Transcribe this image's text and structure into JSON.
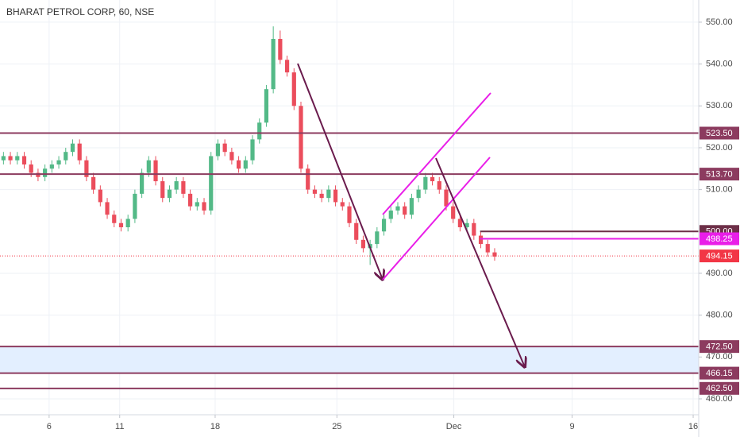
{
  "chart_data": {
    "type": "candlestick",
    "title": "BHARAT PETROL CORP, 60, NSE",
    "up_color": "#53b987",
    "down_color": "#eb4d5c",
    "xlim": [
      -0.5,
      100.5
    ],
    "xticks": [
      {
        "value": 6.6,
        "label": "6"
      },
      {
        "value": 16.8,
        "label": "11"
      },
      {
        "value": 30.6,
        "label": "18"
      },
      {
        "value": 48.2,
        "label": "25"
      },
      {
        "value": 65.1,
        "label": "Dec"
      },
      {
        "value": 82.2,
        "label": "9"
      },
      {
        "value": 99.7,
        "label": "16"
      }
    ],
    "ylim": [
      456.2,
      555.3
    ],
    "yticks": [
      {
        "value": 460,
        "label": "460.00"
      },
      {
        "value": 470,
        "label": "470.00"
      },
      {
        "value": 480,
        "label": "480.00"
      },
      {
        "value": 490,
        "label": "490.00"
      },
      {
        "value": 510,
        "label": "510.00"
      },
      {
        "value": 520,
        "label": "520.00"
      },
      {
        "value": 530,
        "label": "530.00"
      },
      {
        "value": 540,
        "label": "540.00"
      },
      {
        "value": 550,
        "label": "550.00"
      }
    ],
    "grid": true,
    "open": [
      517,
      518,
      517,
      518,
      516,
      514,
      513,
      515,
      516,
      517,
      519,
      521,
      517,
      513,
      510,
      507,
      504,
      502,
      501,
      503,
      509,
      514,
      517,
      512,
      508,
      510,
      512,
      509,
      506,
      507,
      505,
      518,
      521,
      519,
      517,
      515,
      517,
      522,
      526,
      534,
      546,
      541,
      538,
      530,
      515,
      510,
      509,
      508,
      510,
      507,
      506,
      502,
      498,
      496,
      497,
      500,
      503,
      505,
      506,
      504,
      508,
      510,
      513,
      512,
      510,
      506,
      503,
      501,
      502,
      499,
      497,
      495
    ],
    "high": [
      519,
      519,
      519,
      519,
      517,
      515,
      516,
      517,
      518,
      520,
      522,
      522,
      518,
      514,
      511,
      508,
      505,
      503,
      504,
      510,
      515,
      518,
      518,
      513,
      511,
      513,
      513,
      510,
      508,
      508,
      519,
      522,
      522,
      520,
      518,
      518,
      523,
      527,
      535,
      549,
      548,
      542,
      539,
      531,
      516,
      511,
      510,
      511,
      511,
      508,
      507,
      503,
      499,
      498,
      501,
      504,
      506,
      507,
      507,
      509,
      511,
      514,
      514,
      513,
      511,
      507,
      504,
      503,
      503,
      500,
      498,
      496
    ],
    "low": [
      516,
      516,
      516,
      515,
      513,
      512,
      512,
      514,
      515,
      516,
      518,
      516,
      512,
      509,
      506,
      503,
      501,
      500,
      500,
      502,
      508,
      513,
      511,
      507,
      507,
      509,
      508,
      505,
      505,
      504,
      504,
      517,
      518,
      516,
      514,
      514,
      516,
      521,
      525,
      533,
      540,
      537,
      529,
      514,
      509,
      508,
      507,
      507,
      506,
      505,
      501,
      497,
      495,
      492,
      496,
      499,
      502,
      504,
      503,
      503,
      507,
      509,
      511,
      509,
      505,
      502,
      500,
      500,
      498,
      496,
      494,
      493
    ],
    "close": [
      518,
      517,
      518,
      516,
      514,
      513,
      515,
      516,
      517,
      519,
      521,
      517,
      513,
      510,
      507,
      504,
      502,
      501,
      503,
      509,
      514,
      517,
      512,
      508,
      510,
      512,
      509,
      506,
      507,
      505,
      518,
      521,
      519,
      517,
      515,
      517,
      522,
      526,
      534,
      546,
      541,
      538,
      530,
      515,
      510,
      509,
      508,
      510,
      507,
      506,
      502,
      498,
      496,
      497,
      500,
      503,
      505,
      506,
      504,
      508,
      510,
      513,
      512,
      510,
      506,
      503,
      501,
      502,
      499,
      497,
      495,
      494
    ],
    "levels": [
      {
        "value": 523.5,
        "label": "523.50",
        "color": "#8c3b5f"
      },
      {
        "value": 513.7,
        "label": "513.70",
        "color": "#8c3b5f"
      },
      {
        "value": 500,
        "label": "500.00",
        "color": "#6d2f48",
        "x_start": 68.9
      },
      {
        "value": 498.25,
        "label": "498.25",
        "color": "#e91ee8",
        "x_start": 68.9
      },
      {
        "value": 472.5,
        "label": "472.50",
        "color": "#8c3b5f"
      },
      {
        "value": 466.15,
        "label": "466.15",
        "color": "#8c3b5f"
      },
      {
        "value": 462.5,
        "label": "462.50",
        "color": "#8c3b5f"
      }
    ],
    "zone": {
      "top": 472.5,
      "bottom": 466.15,
      "color": "#e3efff"
    },
    "last_price": {
      "value": 494.15,
      "label": "494.15",
      "color": "#f23645"
    }
  }
}
